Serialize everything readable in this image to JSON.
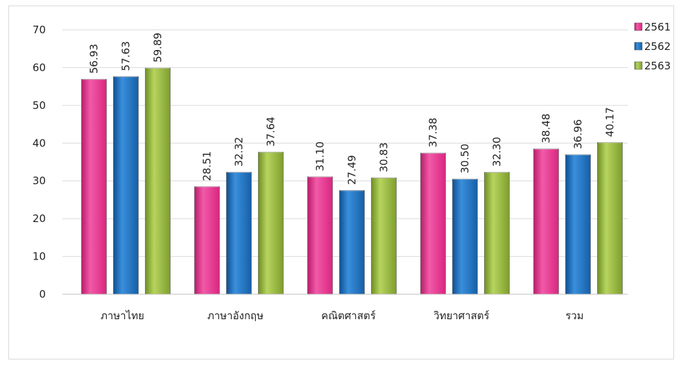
{
  "chart_data": {
    "type": "bar",
    "categories": [
      "ภาษาไทย",
      "ภาษาอังกฤษ",
      "คณิตศาสตร์",
      "วิทยาศาสตร์",
      "รวม"
    ],
    "series": [
      {
        "name": "2561",
        "values": [
          56.93,
          28.51,
          31.1,
          37.38,
          38.48
        ],
        "labels": [
          "56.93",
          "28.51",
          "31.10",
          "37.38",
          "38.48"
        ],
        "color": "#e8308e"
      },
      {
        "name": "2562",
        "values": [
          57.63,
          32.32,
          27.49,
          30.5,
          36.96
        ],
        "labels": [
          "57.63",
          "32.32",
          "27.49",
          "30.50",
          "36.96"
        ],
        "color": "#1a6fbf"
      },
      {
        "name": "2563",
        "values": [
          59.89,
          37.64,
          30.83,
          32.3,
          40.17
        ],
        "labels": [
          "59.89",
          "37.64",
          "30.83",
          "32.30",
          "40.17"
        ],
        "color": "#8fb33a"
      }
    ],
    "yticks": [
      "0",
      "10",
      "20",
      "30",
      "40",
      "50",
      "60",
      "70"
    ],
    "ylim": [
      0,
      70
    ],
    "grid": true,
    "legend": "top-right",
    "title": "",
    "xlabel": "",
    "ylabel": ""
  }
}
